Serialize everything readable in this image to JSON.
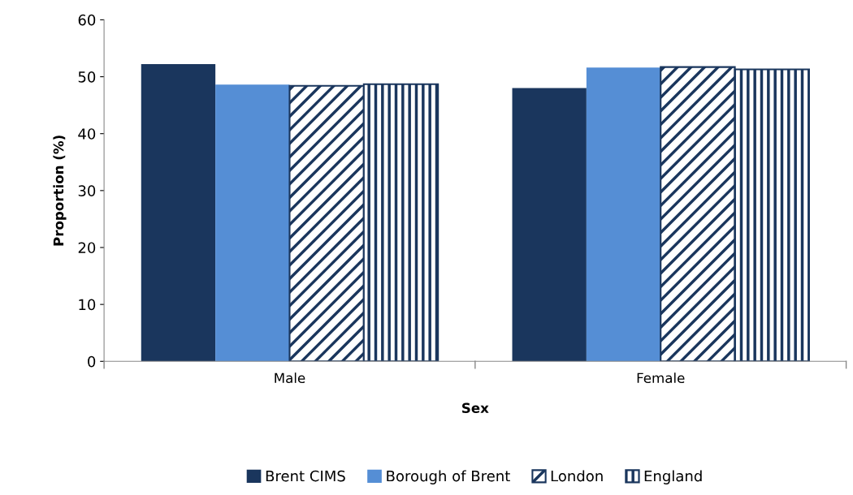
{
  "chart_data": {
    "type": "bar",
    "xlabel": "Sex",
    "ylabel": "Proportion (%)",
    "categories": [
      "Male",
      "Female"
    ],
    "series": [
      {
        "name": "Brent CIMS",
        "color": "#1a365d",
        "values": [
          52.2,
          48.0
        ]
      },
      {
        "name": "Borough of Brent",
        "color": "#558ed5",
        "values": [
          48.6,
          51.6
        ]
      },
      {
        "name": "London",
        "color": "#1a365d",
        "values": [
          48.4,
          51.7
        ]
      },
      {
        "name": "England",
        "color": "#1a365d",
        "values": [
          48.7,
          51.3
        ]
      }
    ],
    "ylim": [
      0,
      60
    ],
    "yticks": [
      0,
      10,
      20,
      30,
      40,
      50,
      60
    ],
    "grid": false,
    "legend": "bottom"
  }
}
